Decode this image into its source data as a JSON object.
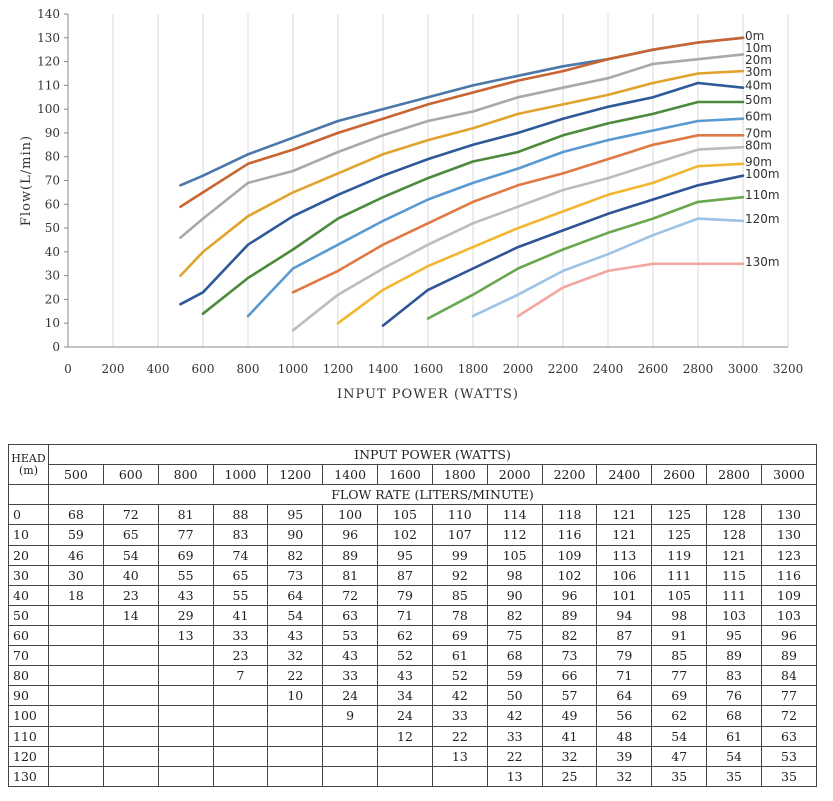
{
  "chart_data": [
    {
      "type": "line",
      "xlabel": "INPUT POWER (WATTS)",
      "ylabel": "Flow(L/min)",
      "xlim": [
        0,
        3200
      ],
      "ylim": [
        0,
        140
      ],
      "x_ticks": [
        "0",
        "200",
        "400",
        "600",
        "800",
        "1000",
        "1200",
        "1400",
        "1600",
        "1800",
        "2000",
        "2200",
        "2400",
        "2600",
        "2800",
        "3000",
        "3200"
      ],
      "y_ticks": [
        "0",
        "10",
        "20",
        "30",
        "40",
        "50",
        "60",
        "70",
        "80",
        "90",
        "100",
        "110",
        "120",
        "130",
        "140"
      ],
      "grid": "vertical",
      "series": [
        {
          "name": "0m",
          "color": "#4a78a8",
          "x": [
            500,
            600,
            800,
            1000,
            1200,
            1400,
            1600,
            1800,
            2000,
            2200,
            2400,
            2600,
            2800,
            3000
          ],
          "y": [
            68,
            72,
            81,
            88,
            95,
            100,
            105,
            110,
            114,
            118,
            121,
            125,
            128,
            130
          ]
        },
        {
          "name": "10m",
          "color": "#c86532",
          "x": [
            500,
            600,
            800,
            1000,
            1200,
            1400,
            1600,
            1800,
            2000,
            2200,
            2400,
            2600,
            2800,
            3000
          ],
          "y": [
            59,
            65,
            77,
            83,
            90,
            96,
            102,
            107,
            112,
            116,
            121,
            125,
            128,
            130
          ]
        },
        {
          "name": "20m",
          "color": "#a9a9a9",
          "x": [
            500,
            600,
            800,
            1000,
            1200,
            1400,
            1600,
            1800,
            2000,
            2200,
            2400,
            2600,
            2800,
            3000
          ],
          "y": [
            46,
            54,
            69,
            74,
            82,
            89,
            95,
            99,
            105,
            109,
            113,
            119,
            121,
            123
          ]
        },
        {
          "name": "30m",
          "color": "#e0a32e",
          "x": [
            500,
            600,
            800,
            1000,
            1200,
            1400,
            1600,
            1800,
            2000,
            2200,
            2400,
            2600,
            2800,
            3000
          ],
          "y": [
            30,
            40,
            55,
            65,
            73,
            81,
            87,
            92,
            98,
            102,
            106,
            111,
            115,
            116
          ]
        },
        {
          "name": "40m",
          "color": "#2e5a9a",
          "x": [
            500,
            600,
            800,
            1000,
            1200,
            1400,
            1600,
            1800,
            2000,
            2200,
            2400,
            2600,
            2800,
            3000
          ],
          "y": [
            18,
            23,
            43,
            55,
            64,
            72,
            79,
            85,
            90,
            96,
            101,
            105,
            111,
            109
          ]
        },
        {
          "name": "50m",
          "color": "#4c8a3c",
          "x": [
            600,
            800,
            1000,
            1200,
            1400,
            1600,
            1800,
            2000,
            2200,
            2400,
            2600,
            2800,
            3000
          ],
          "y": [
            14,
            29,
            41,
            54,
            63,
            71,
            78,
            82,
            89,
            94,
            98,
            103,
            103
          ]
        },
        {
          "name": "60m",
          "color": "#5a9ad2",
          "x": [
            800,
            1000,
            1200,
            1400,
            1600,
            1800,
            2000,
            2200,
            2400,
            2600,
            2800,
            3000
          ],
          "y": [
            13,
            33,
            43,
            53,
            62,
            69,
            75,
            82,
            87,
            91,
            95,
            96
          ]
        },
        {
          "name": "70m",
          "color": "#e07a45",
          "x": [
            1000,
            1200,
            1400,
            1600,
            1800,
            2000,
            2200,
            2400,
            2600,
            2800,
            3000
          ],
          "y": [
            23,
            32,
            43,
            52,
            61,
            68,
            73,
            79,
            85,
            89,
            89
          ]
        },
        {
          "name": "80m",
          "color": "#bcbcbc",
          "x": [
            1000,
            1200,
            1400,
            1600,
            1800,
            2000,
            2200,
            2400,
            2600,
            2800,
            3000
          ],
          "y": [
            7,
            22,
            33,
            43,
            52,
            59,
            66,
            71,
            77,
            83,
            84
          ]
        },
        {
          "name": "90m",
          "color": "#f2b630",
          "x": [
            1200,
            1400,
            1600,
            1800,
            2000,
            2200,
            2400,
            2600,
            2800,
            3000
          ],
          "y": [
            10,
            24,
            34,
            42,
            50,
            57,
            64,
            69,
            76,
            77
          ]
        },
        {
          "name": "100m",
          "color": "#2f5596",
          "x": [
            1400,
            1600,
            1800,
            2000,
            2200,
            2400,
            2600,
            2800,
            3000
          ],
          "y": [
            9,
            24,
            33,
            42,
            49,
            56,
            62,
            68,
            72
          ]
        },
        {
          "name": "110m",
          "color": "#6aa84f",
          "x": [
            1600,
            1800,
            2000,
            2200,
            2400,
            2600,
            2800,
            3000
          ],
          "y": [
            12,
            22,
            33,
            41,
            48,
            54,
            61,
            63
          ]
        },
        {
          "name": "120m",
          "color": "#9dc3e6",
          "x": [
            1800,
            2000,
            2200,
            2400,
            2600,
            2800,
            3000
          ],
          "y": [
            13,
            22,
            32,
            39,
            47,
            54,
            53
          ]
        },
        {
          "name": "130m",
          "color": "#f4a6a0",
          "x": [
            2000,
            2200,
            2400,
            2600,
            2800,
            3000
          ],
          "y": [
            13,
            25,
            32,
            35,
            35,
            35
          ]
        }
      ]
    },
    {
      "type": "table",
      "head_label_line1": "HEAD",
      "head_label_line2": "(m)",
      "power_title": "INPUT POWER (WATTS)",
      "flow_title": "FLOW RATE (LITERS/MINUTE)",
      "columns": [
        "500",
        "600",
        "800",
        "1000",
        "1200",
        "1400",
        "1600",
        "1800",
        "2000",
        "2200",
        "2400",
        "2600",
        "2800",
        "3000"
      ],
      "rows": [
        {
          "head": "0",
          "values": [
            "68",
            "72",
            "81",
            "88",
            "95",
            "100",
            "105",
            "110",
            "114",
            "118",
            "121",
            "125",
            "128",
            "130"
          ]
        },
        {
          "head": "10",
          "values": [
            "59",
            "65",
            "77",
            "83",
            "90",
            "96",
            "102",
            "107",
            "112",
            "116",
            "121",
            "125",
            "128",
            "130"
          ]
        },
        {
          "head": "20",
          "values": [
            "46",
            "54",
            "69",
            "74",
            "82",
            "89",
            "95",
            "99",
            "105",
            "109",
            "113",
            "119",
            "121",
            "123"
          ]
        },
        {
          "head": "30",
          "values": [
            "30",
            "40",
            "55",
            "65",
            "73",
            "81",
            "87",
            "92",
            "98",
            "102",
            "106",
            "111",
            "115",
            "116"
          ]
        },
        {
          "head": "40",
          "values": [
            "18",
            "23",
            "43",
            "55",
            "64",
            "72",
            "79",
            "85",
            "90",
            "96",
            "101",
            "105",
            "111",
            "109"
          ]
        },
        {
          "head": "50",
          "values": [
            "",
            "14",
            "29",
            "41",
            "54",
            "63",
            "71",
            "78",
            "82",
            "89",
            "94",
            "98",
            "103",
            "103"
          ]
        },
        {
          "head": "60",
          "values": [
            "",
            "",
            "13",
            "33",
            "43",
            "53",
            "62",
            "69",
            "75",
            "82",
            "87",
            "91",
            "95",
            "96"
          ]
        },
        {
          "head": "70",
          "values": [
            "",
            "",
            "",
            "23",
            "32",
            "43",
            "52",
            "61",
            "68",
            "73",
            "79",
            "85",
            "89",
            "89"
          ]
        },
        {
          "head": "80",
          "values": [
            "",
            "",
            "",
            "7",
            "22",
            "33",
            "43",
            "52",
            "59",
            "66",
            "71",
            "77",
            "83",
            "84"
          ]
        },
        {
          "head": "90",
          "values": [
            "",
            "",
            "",
            "",
            "10",
            "24",
            "34",
            "42",
            "50",
            "57",
            "64",
            "69",
            "76",
            "77"
          ]
        },
        {
          "head": "100",
          "values": [
            "",
            "",
            "",
            "",
            "",
            "9",
            "24",
            "33",
            "42",
            "49",
            "56",
            "62",
            "68",
            "72"
          ]
        },
        {
          "head": "110",
          "values": [
            "",
            "",
            "",
            "",
            "",
            "",
            "12",
            "22",
            "33",
            "41",
            "48",
            "54",
            "61",
            "63"
          ]
        },
        {
          "head": "120",
          "values": [
            "",
            "",
            "",
            "",
            "",
            "",
            "",
            "13",
            "22",
            "32",
            "39",
            "47",
            "54",
            "53"
          ]
        },
        {
          "head": "130",
          "values": [
            "",
            "",
            "",
            "",
            "",
            "",
            "",
            "",
            "13",
            "25",
            "32",
            "35",
            "35",
            "35"
          ]
        }
      ]
    }
  ]
}
